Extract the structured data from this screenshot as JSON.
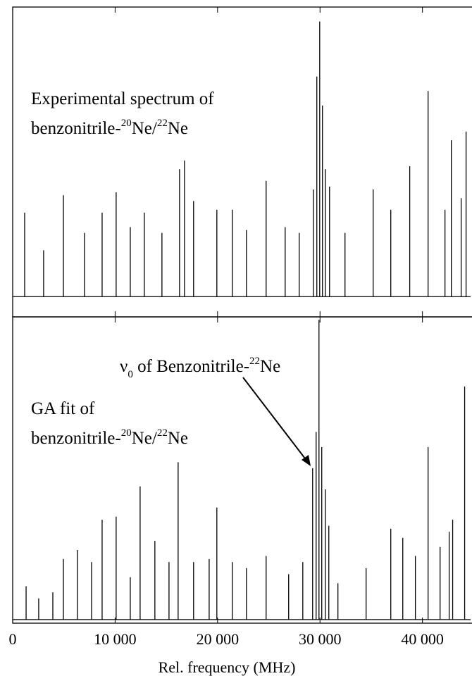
{
  "chart_data": [
    {
      "type": "stick",
      "annotation": {
        "line1": "Experimental spectrum of",
        "line2": [
          "benzonitrile-",
          "20",
          "Ne/",
          "22",
          "Ne"
        ]
      },
      "x": [
        1170,
        3020,
        4950,
        7010,
        8730,
        10100,
        11480,
        12850,
        14570,
        16290,
        16770,
        17660,
        19930,
        21440,
        22820,
        24740,
        26600,
        27970,
        29350,
        29690,
        29970,
        30240,
        30520,
        30930,
        32440,
        35190,
        36910,
        38760,
        40550,
        42200,
        42820,
        43780,
        44260
      ],
      "values": [
        0.29,
        0.16,
        0.35,
        0.22,
        0.29,
        0.36,
        0.24,
        0.29,
        0.22,
        0.44,
        0.47,
        0.33,
        0.3,
        0.3,
        0.23,
        0.4,
        0.24,
        0.22,
        0.37,
        0.76,
        0.95,
        0.66,
        0.44,
        0.38,
        0.22,
        0.37,
        0.3,
        0.45,
        0.71,
        0.3,
        0.54,
        0.34,
        0.57
      ],
      "xlim": [
        0,
        44700
      ],
      "ylim": [
        -0.07,
        1.0
      ],
      "color": "#000000"
    },
    {
      "type": "stick",
      "annotation": {
        "line1": "GA fit of",
        "line2": [
          "benzonitrile-",
          "20",
          "Ne/",
          "22",
          "Ne"
        ],
        "pointer": [
          "ν",
          "0",
          " of Benzonitrile-",
          "22",
          "Ne"
        ]
      },
      "x": [
        1310,
        2540,
        3920,
        4950,
        6320,
        7700,
        8730,
        10100,
        11480,
        12440,
        13880,
        15260,
        16150,
        17660,
        19180,
        19930,
        21440,
        22820,
        24740,
        26940,
        28320,
        29280,
        29620,
        29900,
        30170,
        30520,
        30860,
        31750,
        34500,
        36910,
        38080,
        39310,
        40550,
        41720,
        42610,
        42950,
        44120
      ],
      "values": [
        0.11,
        0.07,
        0.09,
        0.2,
        0.23,
        0.19,
        0.33,
        0.34,
        0.14,
        0.44,
        0.26,
        0.19,
        0.52,
        0.19,
        0.2,
        0.37,
        0.19,
        0.17,
        0.21,
        0.15,
        0.19,
        0.5,
        0.62,
        0.99,
        0.57,
        0.43,
        0.31,
        0.12,
        0.17,
        0.3,
        0.27,
        0.21,
        0.57,
        0.24,
        0.29,
        0.33,
        0.77
      ],
      "xlim": [
        0,
        44700
      ],
      "ylim": [
        -0.012,
        1.0
      ],
      "color": "#000000",
      "xlabel": "Rel. frequency (MHz)",
      "xticks": [
        0,
        {
          "value": 10000,
          "label": "10 000"
        },
        {
          "value": 20000,
          "label": "20 000"
        },
        {
          "value": 30000,
          "label": "30 000"
        },
        {
          "value": 40000,
          "label": "40 000"
        }
      ]
    }
  ]
}
